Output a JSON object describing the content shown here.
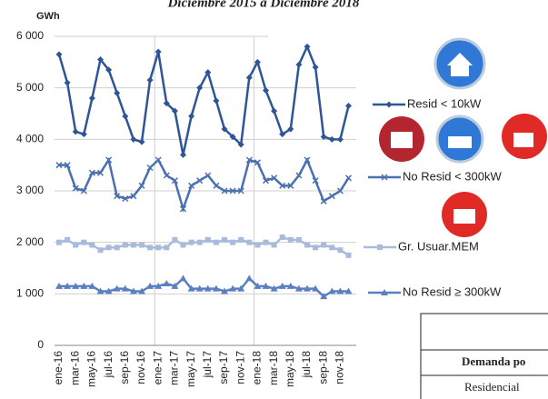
{
  "chart_data": {
    "type": "line",
    "title": "Diciembre 2015 a Diciembre 2018",
    "y_label": "GWh",
    "categories": [
      "ene-16",
      null,
      "mar-16",
      null,
      "may-16",
      null,
      "jul-16",
      null,
      "sep-16",
      null,
      "nov-16",
      null,
      "ene-17",
      null,
      "mar-17",
      null,
      "may-17",
      null,
      "jul-17",
      null,
      "sep-17",
      null,
      "nov-17",
      null,
      "ene-18",
      null,
      "mar-18",
      null,
      "may-18",
      null,
      "jul-18",
      null,
      "sep-18",
      null,
      "nov-18",
      null
    ],
    "series": [
      {
        "name": "Resid < 10kW",
        "color": "#2e5597",
        "marker": "diamond",
        "values": [
          5650,
          5100,
          4150,
          4100,
          4800,
          5550,
          5350,
          4900,
          4450,
          4000,
          3950,
          5150,
          5700,
          4700,
          4550,
          3700,
          4450,
          5000,
          5300,
          4750,
          4200,
          4050,
          3900,
          5200,
          5500,
          4950,
          4550,
          4100,
          4200,
          5450,
          5800,
          5400,
          4050,
          4000,
          4000,
          4650
        ]
      },
      {
        "name": "No Resid < 300kW",
        "color": "#4a70b0",
        "marker": "x",
        "values": [
          3500,
          3500,
          3050,
          3000,
          3350,
          3350,
          3600,
          2900,
          2850,
          2900,
          3100,
          3450,
          3600,
          3300,
          3200,
          2650,
          3100,
          3200,
          3300,
          3100,
          3000,
          3000,
          3000,
          3600,
          3550,
          3200,
          3250,
          3100,
          3100,
          3300,
          3600,
          3200,
          2800,
          2900,
          3000,
          3250
        ]
      },
      {
        "name": "Gr. Usuar.MEM",
        "color": "#a9bbdd",
        "marker": "square",
        "values": [
          2000,
          2050,
          1950,
          2000,
          1950,
          1850,
          1900,
          1900,
          1950,
          1950,
          1950,
          1900,
          1900,
          1900,
          2050,
          1950,
          2000,
          2000,
          2050,
          2000,
          2050,
          2000,
          2050,
          2000,
          1950,
          2000,
          1950,
          2100,
          2050,
          2050,
          1950,
          1900,
          1950,
          1900,
          1850,
          1750
        ]
      },
      {
        "name": "No Resid ≥ 300kW",
        "color": "#5b7fc0",
        "marker": "triangle",
        "values": [
          1150,
          1150,
          1150,
          1150,
          1150,
          1050,
          1050,
          1100,
          1100,
          1050,
          1050,
          1150,
          1150,
          1200,
          1150,
          1300,
          1100,
          1100,
          1100,
          1100,
          1050,
          1100,
          1100,
          1300,
          1150,
          1150,
          1100,
          1150,
          1150,
          1100,
          1100,
          1100,
          950,
          1050,
          1050,
          1050
        ]
      }
    ],
    "ylim": [
      0,
      6000
    ],
    "yticks": [
      0,
      {
        "value": 1000,
        "label": "1 000"
      },
      {
        "value": 2000,
        "label": "2 000"
      },
      {
        "value": 3000,
        "label": "3 000"
      },
      {
        "value": 4000,
        "label": "4 000"
      },
      {
        "value": 5000,
        "label": "5 000"
      },
      {
        "value": 6000,
        "label": "6 000"
      }
    ],
    "grid": true
  },
  "table": {
    "header": "Demanda po",
    "rows": [
      "Residencial"
    ]
  }
}
